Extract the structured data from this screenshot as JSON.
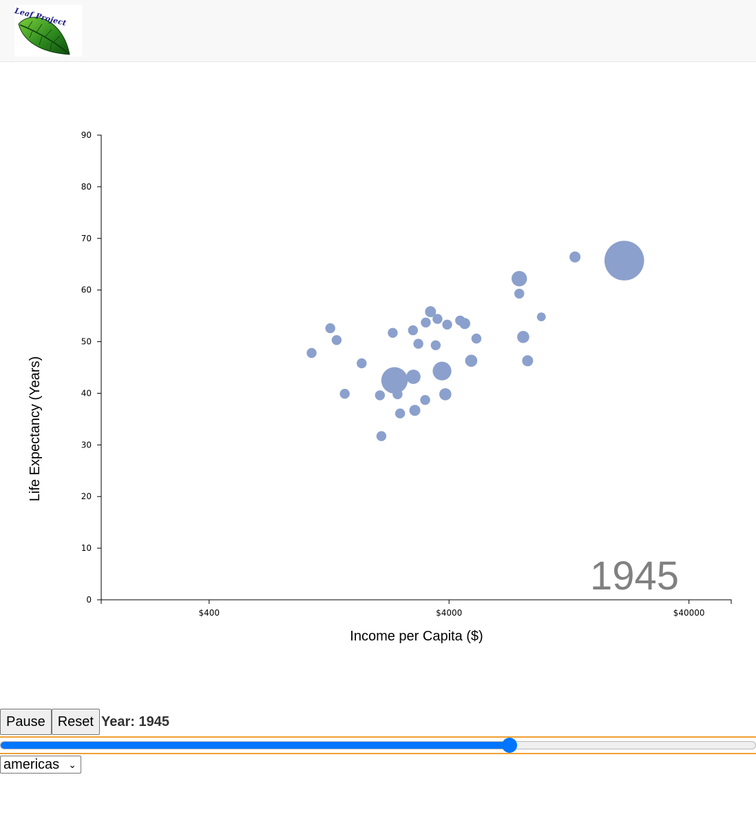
{
  "logo": {
    "text": "Leaf Project"
  },
  "controls": {
    "pause_label": "Pause",
    "reset_label": "Reset",
    "year_text": "Year: 1945",
    "slider_fraction": 0.674,
    "region_selected": "americas"
  },
  "colors": {
    "bubble": "#8ba0cc",
    "slider": "#0075ff",
    "year_label": "#808080"
  },
  "chart_data": {
    "type": "scatter",
    "year": "1945",
    "xlabel": "Income per Capita ($)",
    "ylabel": "Life Expectancy (Years)",
    "x_scale": "log",
    "xlim": [
      142,
      60000
    ],
    "ylim": [
      0,
      90
    ],
    "x_ticks": [
      400,
      4000,
      40000
    ],
    "x_tick_labels": [
      "$400",
      "$4000",
      "$40000"
    ],
    "y_ticks": [
      0,
      10,
      20,
      30,
      40,
      50,
      60,
      70,
      80,
      90
    ],
    "legend": "none",
    "grid": false,
    "points": [
      {
        "x": 21500,
        "y": 65.7,
        "size": 3.6
      },
      {
        "x": 13400,
        "y": 66.4,
        "size": 1.0
      },
      {
        "x": 7850,
        "y": 62.2,
        "size": 1.4
      },
      {
        "x": 7850,
        "y": 59.3,
        "size": 0.9
      },
      {
        "x": 9700,
        "y": 54.8,
        "size": 0.8
      },
      {
        "x": 8150,
        "y": 50.9,
        "size": 1.1
      },
      {
        "x": 8500,
        "y": 46.3,
        "size": 1.0
      },
      {
        "x": 3350,
        "y": 55.8,
        "size": 1.0
      },
      {
        "x": 3580,
        "y": 54.4,
        "size": 0.9
      },
      {
        "x": 3200,
        "y": 53.7,
        "size": 0.9
      },
      {
        "x": 3930,
        "y": 53.3,
        "size": 0.9
      },
      {
        "x": 4450,
        "y": 54.1,
        "size": 0.9
      },
      {
        "x": 4650,
        "y": 53.5,
        "size": 1.0
      },
      {
        "x": 2830,
        "y": 52.2,
        "size": 0.9
      },
      {
        "x": 2330,
        "y": 51.7,
        "size": 0.9
      },
      {
        "x": 5200,
        "y": 50.6,
        "size": 0.9
      },
      {
        "x": 2980,
        "y": 49.6,
        "size": 0.9
      },
      {
        "x": 3520,
        "y": 49.3,
        "size": 0.9
      },
      {
        "x": 1280,
        "y": 52.6,
        "size": 0.9
      },
      {
        "x": 1360,
        "y": 50.3,
        "size": 0.9
      },
      {
        "x": 1070,
        "y": 47.8,
        "size": 0.9
      },
      {
        "x": 1730,
        "y": 45.8,
        "size": 0.9
      },
      {
        "x": 4950,
        "y": 46.3,
        "size": 1.1
      },
      {
        "x": 2370,
        "y": 42.5,
        "size": 2.4
      },
      {
        "x": 2460,
        "y": 41.3,
        "size": 0.9
      },
      {
        "x": 2840,
        "y": 43.2,
        "size": 1.3
      },
      {
        "x": 3740,
        "y": 44.3,
        "size": 1.7
      },
      {
        "x": 1470,
        "y": 39.9,
        "size": 0.9
      },
      {
        "x": 2060,
        "y": 39.6,
        "size": 0.9
      },
      {
        "x": 2440,
        "y": 39.8,
        "size": 0.9
      },
      {
        "x": 3860,
        "y": 39.8,
        "size": 1.1
      },
      {
        "x": 3180,
        "y": 38.7,
        "size": 0.9
      },
      {
        "x": 2500,
        "y": 36.1,
        "size": 0.9
      },
      {
        "x": 2880,
        "y": 36.7,
        "size": 1.0
      },
      {
        "x": 2090,
        "y": 31.7,
        "size": 0.9
      }
    ]
  }
}
